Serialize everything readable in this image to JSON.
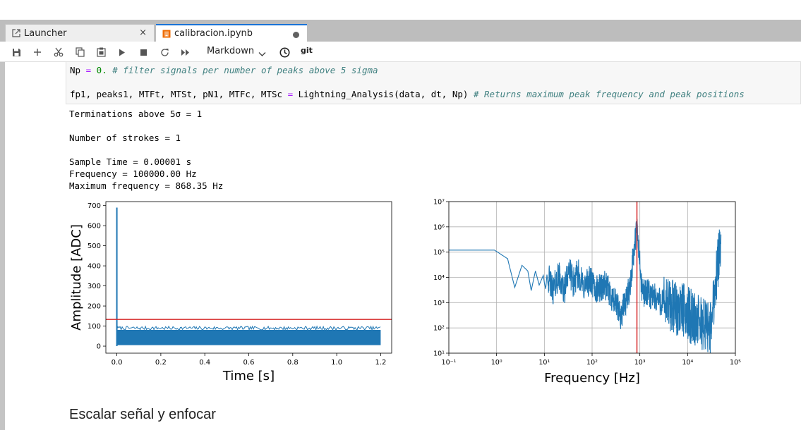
{
  "tabs": [
    {
      "label": "Launcher",
      "icon": "external-link-icon",
      "close": "×"
    },
    {
      "label": "calibracion.ipynb",
      "icon": "notebook-icon",
      "unsaved": true
    }
  ],
  "toolbar": {
    "buttons": [
      "save-icon",
      "add-icon",
      "cut-icon",
      "copy-icon",
      "paste-icon",
      "run-icon",
      "stop-icon",
      "restart-icon",
      "run-all-icon"
    ],
    "cell_type": "Markdown",
    "history_icon": "clock-icon",
    "git_label": "git"
  },
  "code": {
    "line1_var": "Np",
    "line1_op": "=",
    "line1_num": "0.",
    "line1_comment": "# filter signals per number of peaks above 5 sigma",
    "line2_code": "fp1, peaks1, MTFt, MTSt, pN1, MTFc, MTSc ",
    "line2_op": "=",
    "line2_call": " Lightning_Analysis(data, dt, Np) ",
    "line2_comment": "# Returns maximum peak frequency and peak positions"
  },
  "output": {
    "lines": [
      "Terminations above 5σ = 1",
      "Number of strokes = 1",
      "Sample Time = 0.00001 s",
      "Frequency = 100000.00 Hz",
      "Maximum frequency = 868.35 Hz"
    ]
  },
  "chart_data": [
    {
      "type": "line",
      "xlabel": "Time [s]",
      "ylabel": "Amplitude [ADC]",
      "xlim": [
        -0.05,
        1.25
      ],
      "ylim": [
        -35,
        720
      ],
      "xticks": [
        0.0,
        0.2,
        0.4,
        0.6,
        0.8,
        1.0,
        1.2
      ],
      "xtick_labels": [
        "0.0",
        "0.2",
        "0.4",
        "0.6",
        "0.8",
        "1.0",
        "1.2"
      ],
      "yticks": [
        0,
        100,
        200,
        300,
        400,
        500,
        600,
        700
      ],
      "ytick_labels": [
        "0",
        "100",
        "200",
        "300",
        "400",
        "500",
        "600",
        "700"
      ],
      "threshold": 133,
      "spike": {
        "x": 0.0,
        "y": 690
      },
      "noise_band": {
        "x": [
          0.0,
          1.2
        ],
        "y": [
          5,
          95
        ]
      },
      "series_color": "#1f77b4",
      "threshold_color": "#d62728",
      "grid": false
    },
    {
      "type": "line",
      "scale": "log-log",
      "xlabel": "Frequency [Hz]",
      "ylabel": "",
      "xlim": [
        0.1,
        100000
      ],
      "ylim": [
        10,
        10000000
      ],
      "xtick_labels": [
        "10⁻¹",
        "10⁰",
        "10¹",
        "10²",
        "10³",
        "10⁴",
        "10⁵"
      ],
      "ytick_labels": [
        "10¹",
        "10²",
        "10³",
        "10⁴",
        "10⁵",
        "10⁶",
        "10⁷"
      ],
      "peak_frequency": 868.35,
      "series_points": [
        [
          0.1,
          120000
        ],
        [
          0.5,
          120000
        ],
        [
          0.9,
          120000
        ],
        [
          1.7,
          55000
        ],
        [
          2.4,
          4000
        ],
        [
          3.4,
          30000
        ],
        [
          4.5,
          18000
        ],
        [
          5.3,
          3000
        ],
        [
          6.5,
          18000
        ],
        [
          7.8,
          5000
        ],
        [
          9.5,
          12000
        ],
        [
          12,
          10000
        ],
        [
          15,
          3000
        ],
        [
          20,
          12000
        ],
        [
          26,
          2500
        ],
        [
          32,
          25000
        ],
        [
          40,
          6000
        ],
        [
          52,
          15000
        ],
        [
          65,
          4000
        ],
        [
          90,
          8000
        ],
        [
          120,
          3000
        ],
        [
          180,
          5000
        ],
        [
          250,
          2000
        ],
        [
          400,
          300
        ],
        [
          600,
          3000
        ],
        [
          868,
          1000000
        ],
        [
          1100,
          3000
        ],
        [
          2000,
          1500
        ],
        [
          4000,
          800
        ],
        [
          8000,
          500
        ],
        [
          15000,
          200
        ],
        [
          30000,
          100
        ],
        [
          50000,
          500000
        ]
      ],
      "series_color": "#1f77b4",
      "marker_color": "#d62728",
      "grid": true
    }
  ],
  "markdown": {
    "heading": "Escalar señal y enfocar"
  }
}
